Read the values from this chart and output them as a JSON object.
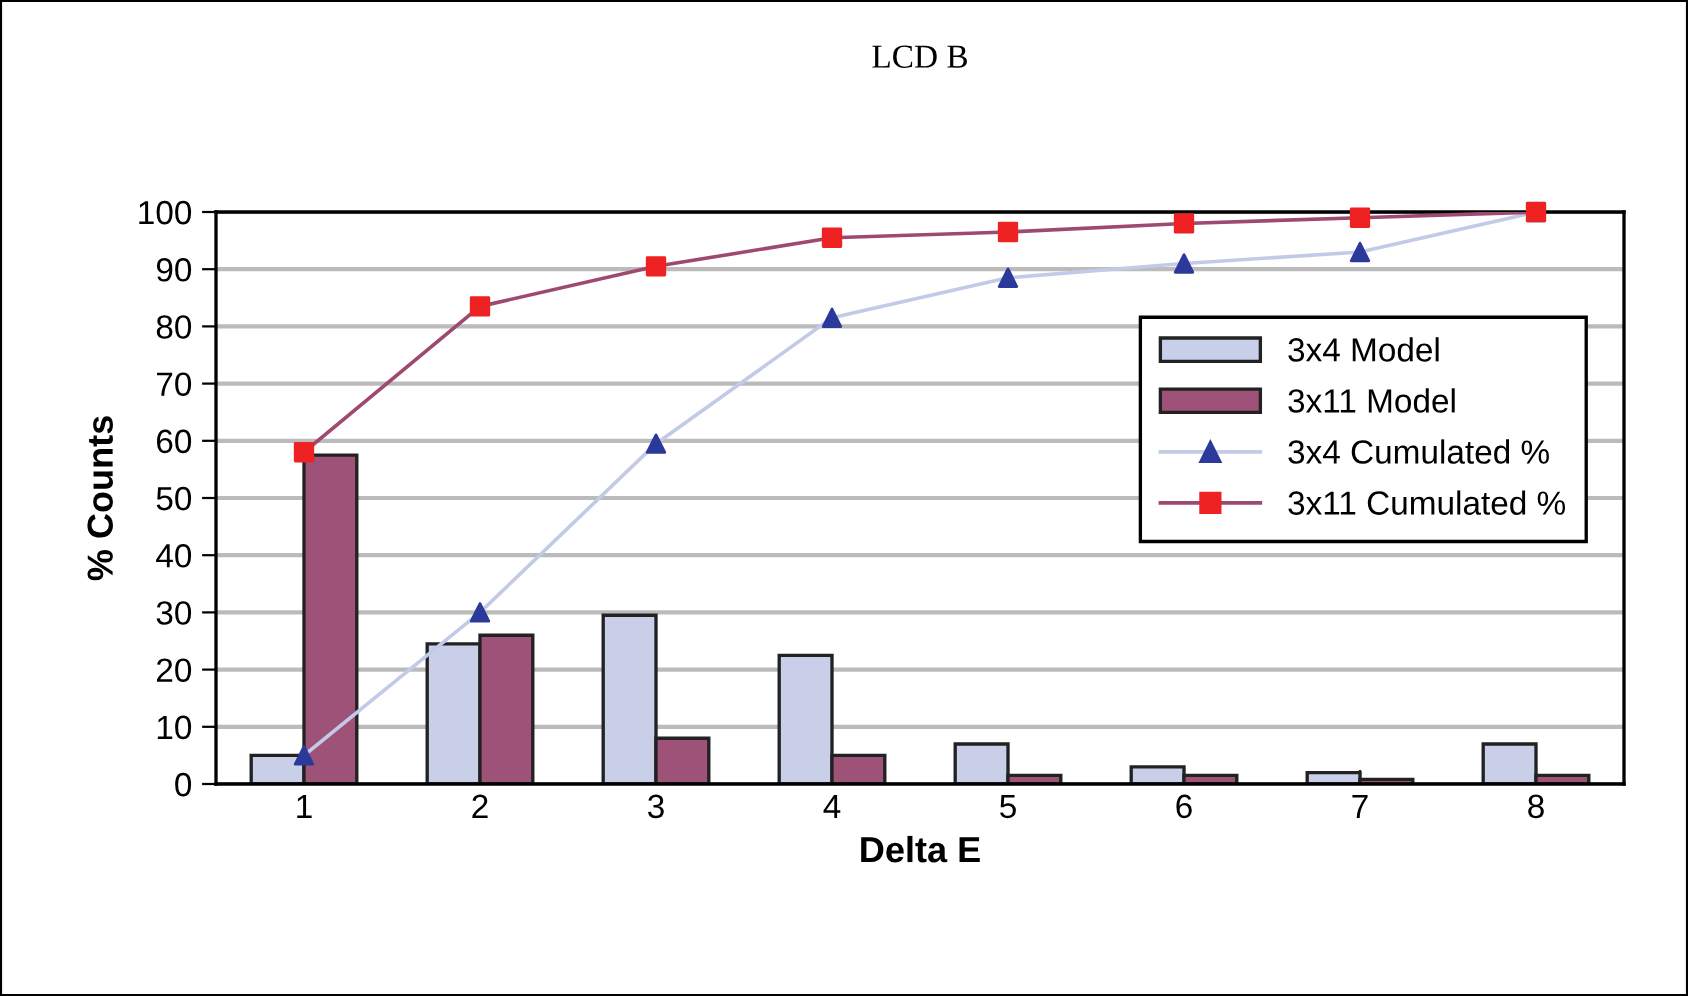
{
  "chart_data": {
    "type": "bar",
    "title": "LCD B",
    "xlabel": "Delta E",
    "ylabel": "% Counts",
    "categories": [
      "1",
      "2",
      "3",
      "4",
      "5",
      "6",
      "7",
      "8"
    ],
    "series": [
      {
        "name": "3x4 Model",
        "color": "#c9cfe8",
        "values": [
          5,
          24.5,
          29.5,
          22.5,
          7,
          3,
          2,
          7
        ]
      },
      {
        "name": "3x11 Model",
        "color": "#9e5277",
        "values": [
          57.5,
          26,
          8,
          5,
          1.5,
          1.5,
          0.8,
          1.5
        ]
      },
      {
        "name": "3x4 Cumulated %",
        "type": "line",
        "color": "#c3cae8",
        "colors": [
          "#2b3a9a",
          "#2b3a9a",
          "#2b3a9a",
          "#2b3a9a",
          "#2b3a9a",
          "#2b3a9a",
          "#2b3a9a",
          "#2b3a9a"
        ],
        "marker": "triangle",
        "values": [
          5,
          30,
          59.5,
          81.5,
          88.5,
          91,
          93,
          100
        ]
      },
      {
        "name": "3x11 Cumulated %",
        "type": "line",
        "color": "#9e4a70",
        "colors": [
          "#ee2222",
          "#ee2222",
          "#ee2222",
          "#ee2222",
          "#ee2222",
          "#ee2222",
          "#ee2222",
          "#ee2222"
        ],
        "marker": "square",
        "values": [
          58,
          83.5,
          90.5,
          95.5,
          96.5,
          98,
          99,
          100
        ]
      }
    ],
    "ylim": [
      0,
      100
    ],
    "yticks": [
      0,
      10,
      20,
      30,
      40,
      50,
      60,
      70,
      80,
      90,
      100
    ],
    "grid": "y",
    "legend": "right"
  }
}
